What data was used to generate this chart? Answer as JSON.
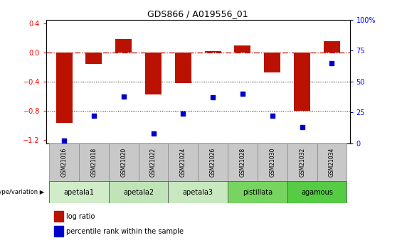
{
  "title": "GDS866 / A019556_01",
  "samples": [
    "GSM21016",
    "GSM21018",
    "GSM21020",
    "GSM21022",
    "GSM21024",
    "GSM21026",
    "GSM21028",
    "GSM21030",
    "GSM21032",
    "GSM21034"
  ],
  "log_ratio": [
    -0.97,
    -0.16,
    0.18,
    -0.58,
    -0.42,
    0.02,
    0.09,
    -0.28,
    -0.8,
    0.15
  ],
  "percentile_rank": [
    2,
    22,
    38,
    8,
    24,
    37,
    40,
    22,
    13,
    65
  ],
  "groups": [
    {
      "label": "apetala1",
      "indices": [
        0,
        1
      ],
      "color": "#d0ecc8"
    },
    {
      "label": "apetala2",
      "indices": [
        2,
        3
      ],
      "color": "#c0e4b8"
    },
    {
      "label": "apetala3",
      "indices": [
        4,
        5
      ],
      "color": "#c8e8c0"
    },
    {
      "label": "pistillata",
      "indices": [
        6,
        7
      ],
      "color": "#78d460"
    },
    {
      "label": "agamous",
      "indices": [
        8,
        9
      ],
      "color": "#55cc44"
    }
  ],
  "bar_color": "#bb1100",
  "dot_color": "#0000cc",
  "sample_box_color": "#c8c8c8",
  "ylim_left": [
    -1.25,
    0.45
  ],
  "ylim_right": [
    0,
    100
  ],
  "yticks_left": [
    -1.2,
    -0.8,
    -0.4,
    0.0,
    0.4
  ],
  "yticks_right": [
    0,
    25,
    50,
    75,
    100
  ],
  "ytick_labels_right": [
    "0",
    "25",
    "50",
    "75",
    "100%"
  ],
  "hline_y": 0.0,
  "dotted_lines": [
    -0.4,
    -0.8
  ],
  "legend_red": "log ratio",
  "legend_blue": "percentile rank within the sample",
  "genotype_label": "genotype/variation"
}
